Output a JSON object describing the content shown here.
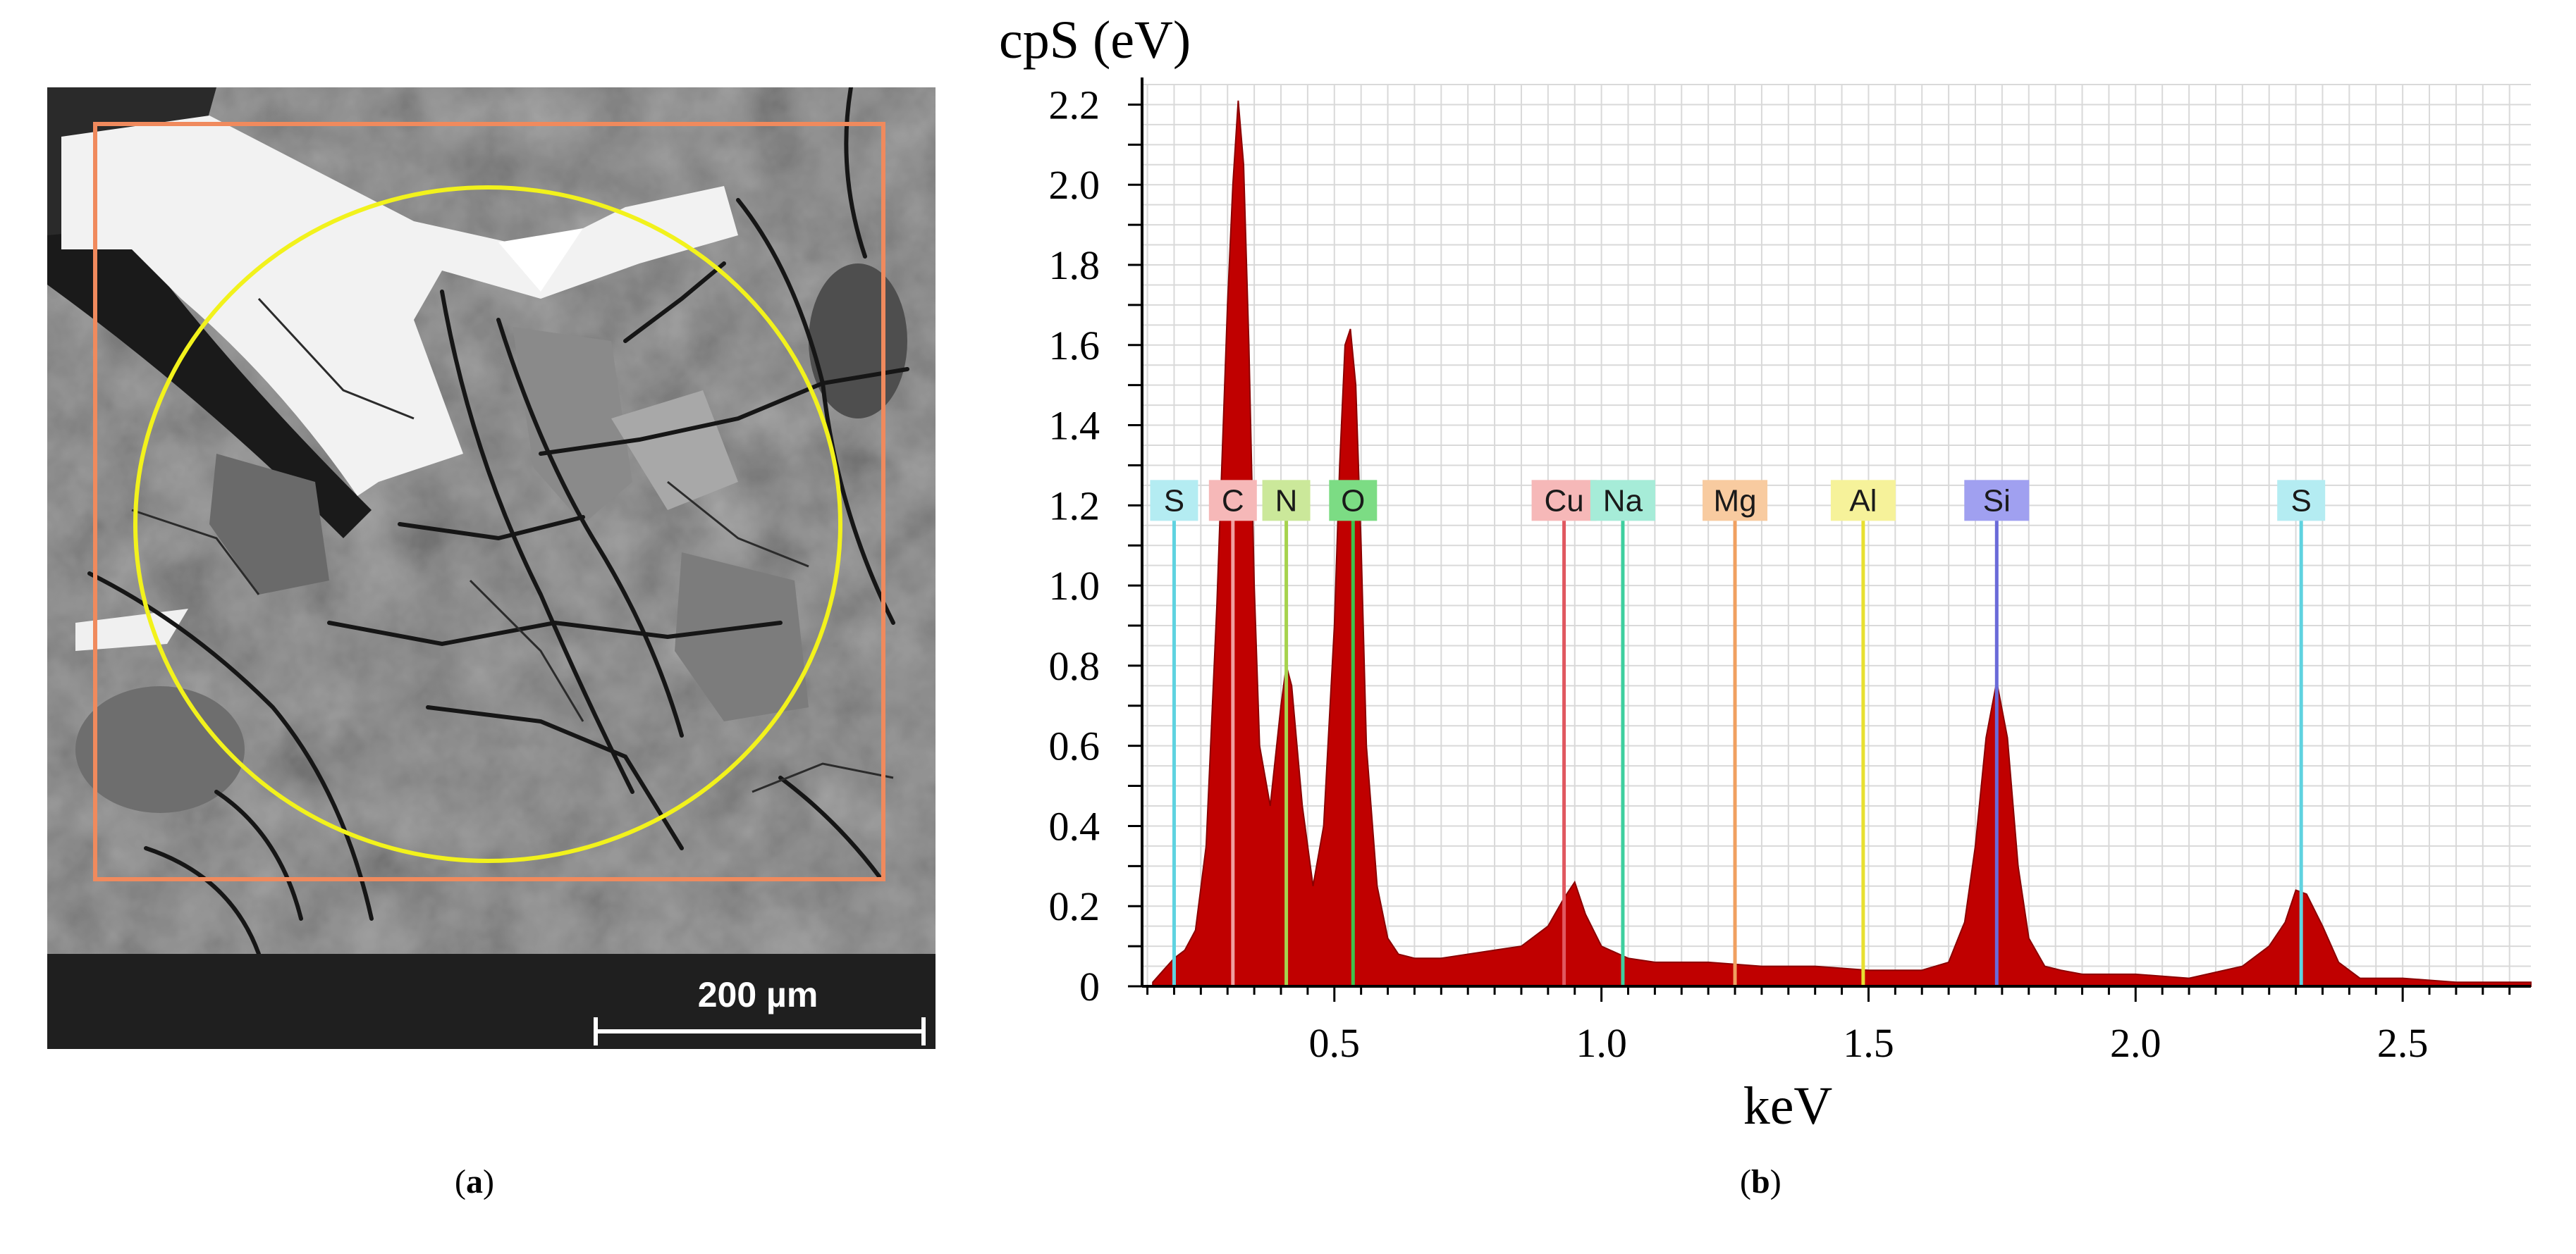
{
  "panel_a": {
    "caption_letter": "a",
    "scale_bar_label": "200 µm"
  },
  "panel_b": {
    "caption_letter": "b"
  },
  "colors": {
    "spectrum_fill": "#c00000",
    "roi_rectangle": "#f08a5d",
    "roi_circle": "#f2f21c",
    "grid": "#d9d9d9"
  },
  "chart_data": {
    "type": "area",
    "title": "",
    "xlabel": "keV",
    "ylabel": "cpS (eV)",
    "xlim": [
      0.14,
      2.74
    ],
    "ylim": [
      0,
      2.25
    ],
    "x_ticks": [
      "0.5",
      "1.0",
      "1.5",
      "2.0",
      "2.5"
    ],
    "y_ticks": [
      "0",
      "0.2",
      "0.4",
      "0.6",
      "0.8",
      "1.0",
      "1.2",
      "1.4",
      "1.6",
      "1.8",
      "2.0",
      "2.2"
    ],
    "grid": true,
    "series": [
      {
        "x": [
          0.16,
          0.18,
          0.2,
          0.22,
          0.24,
          0.26,
          0.28,
          0.3,
          0.31,
          0.32,
          0.33,
          0.34,
          0.35,
          0.36,
          0.38,
          0.4,
          0.41,
          0.42,
          0.44,
          0.46,
          0.48,
          0.5,
          0.51,
          0.52,
          0.53,
          0.54,
          0.55,
          0.56,
          0.58,
          0.6,
          0.62,
          0.65,
          0.7,
          0.75,
          0.8,
          0.85,
          0.9,
          0.93,
          0.95,
          0.97,
          1.0,
          1.05,
          1.1,
          1.2,
          1.3,
          1.4,
          1.5,
          1.6,
          1.65,
          1.68,
          1.7,
          1.72,
          1.74,
          1.76,
          1.78,
          1.8,
          1.83,
          1.86,
          1.9,
          2.0,
          2.1,
          2.2,
          2.25,
          2.28,
          2.3,
          2.32,
          2.35,
          2.38,
          2.42,
          2.5,
          2.6,
          2.74
        ],
        "y": [
          0.01,
          0.04,
          0.07,
          0.09,
          0.14,
          0.35,
          0.95,
          1.7,
          2.0,
          2.21,
          2.05,
          1.6,
          1.0,
          0.6,
          0.45,
          0.7,
          0.8,
          0.75,
          0.45,
          0.25,
          0.4,
          0.9,
          1.3,
          1.6,
          1.64,
          1.5,
          1.1,
          0.6,
          0.25,
          0.12,
          0.08,
          0.07,
          0.07,
          0.08,
          0.09,
          0.1,
          0.15,
          0.22,
          0.26,
          0.18,
          0.1,
          0.07,
          0.06,
          0.06,
          0.05,
          0.05,
          0.04,
          0.04,
          0.06,
          0.16,
          0.35,
          0.62,
          0.76,
          0.62,
          0.3,
          0.12,
          0.05,
          0.04,
          0.03,
          0.03,
          0.02,
          0.05,
          0.1,
          0.16,
          0.24,
          0.23,
          0.15,
          0.06,
          0.02,
          0.02,
          0.01,
          0.01
        ]
      }
    ],
    "element_markers": [
      {
        "label": "S",
        "energy": 0.2,
        "color": "#5fd3e0",
        "badge": "#b4ecf2"
      },
      {
        "label": "C",
        "energy": 0.31,
        "color": "#f0a0a0",
        "badge": "#f6b8b8"
      },
      {
        "label": "N",
        "energy": 0.41,
        "color": "#a6d24d",
        "badge": "#cbe89a"
      },
      {
        "label": "O",
        "energy": 0.535,
        "color": "#3ec24c",
        "badge": "#7cdc84"
      },
      {
        "label": "Cu",
        "energy": 0.93,
        "color": "#e05860",
        "badge": "#f6b8b8"
      },
      {
        "label": "Na",
        "energy": 1.04,
        "color": "#3ecf9f",
        "badge": "#a6ecd8"
      },
      {
        "label": "Mg",
        "energy": 1.25,
        "color": "#f0a060",
        "badge": "#f8cba0"
      },
      {
        "label": "Al",
        "energy": 1.49,
        "color": "#e8e030",
        "badge": "#f6f29a"
      },
      {
        "label": "Si",
        "energy": 1.74,
        "color": "#6a6ad8",
        "badge": "#a0a0f0"
      },
      {
        "label": "S",
        "energy": 2.31,
        "color": "#5fd3e0",
        "badge": "#b4ecf2"
      }
    ]
  }
}
